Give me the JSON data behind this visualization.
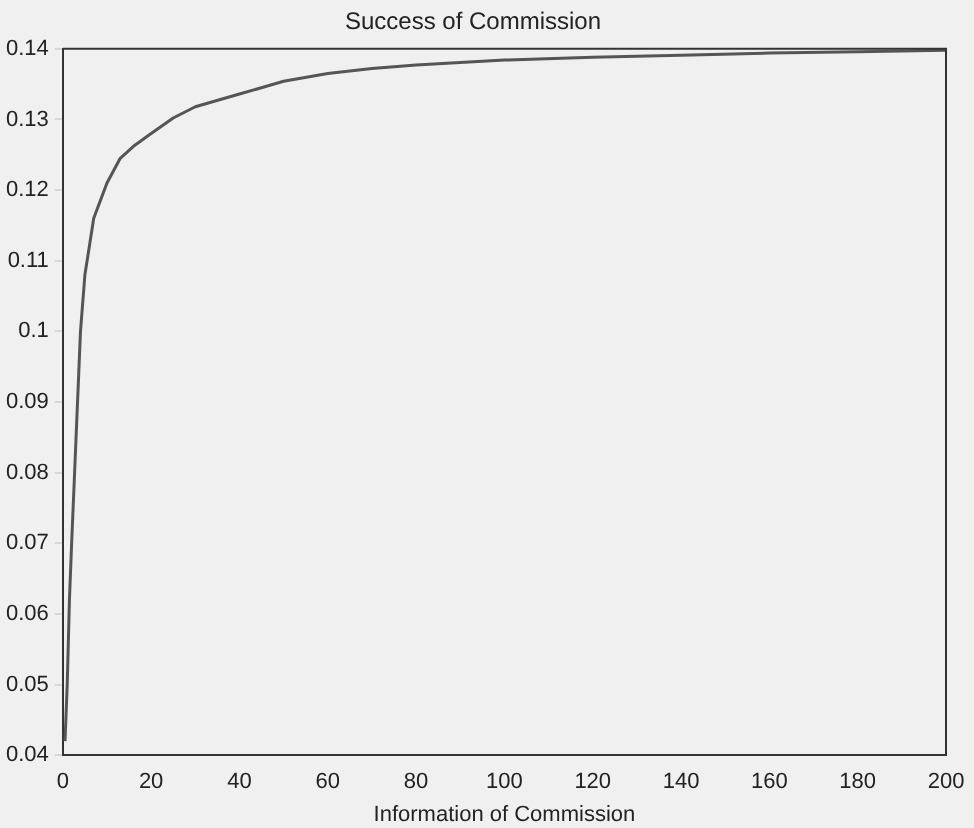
{
  "chart_data": {
    "type": "line",
    "title": "Success of Commission",
    "xlabel": "Information of Commission",
    "x": [
      0.5,
      1,
      1.5,
      2,
      3,
      4,
      5,
      7,
      10,
      13,
      16,
      20,
      25,
      30,
      40,
      50,
      60,
      70,
      80,
      100,
      120,
      140,
      160,
      180,
      200
    ],
    "series": [
      {
        "color": "#555555",
        "values": [
          0.042,
          0.05,
          0.062,
          0.07,
          0.085,
          0.1,
          0.108,
          0.116,
          0.121,
          0.1245,
          0.1262,
          0.128,
          0.1302,
          0.1318,
          0.1336,
          0.1354,
          0.1365,
          0.1372,
          0.1377,
          0.1384,
          0.1388,
          0.1391,
          0.1394,
          0.1396,
          0.1398
        ]
      }
    ],
    "xlim": [
      0,
      200
    ],
    "xticks": [
      0,
      20,
      40,
      60,
      80,
      100,
      120,
      140,
      160,
      180,
      200
    ],
    "ylim": [
      0.04,
      0.14
    ],
    "yticks": [
      0.04,
      0.05,
      0.06,
      0.07,
      0.08,
      0.09,
      0.1,
      0.11,
      0.12,
      0.13,
      0.14
    ],
    "grid": false,
    "legend": false,
    "marker": "none",
    "line_style": "solid"
  }
}
